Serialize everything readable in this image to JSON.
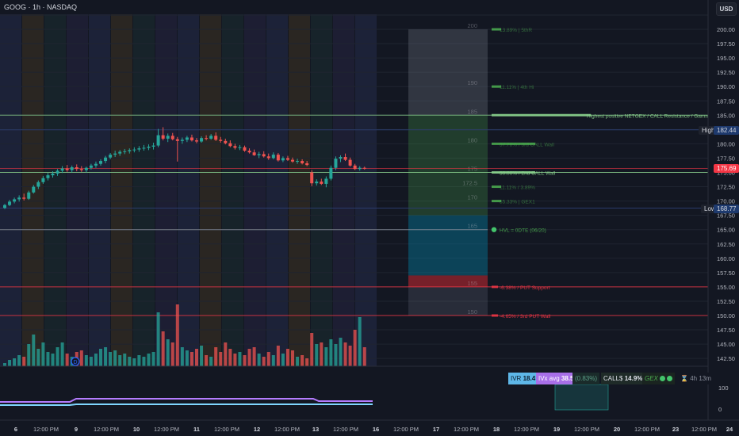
{
  "header": {
    "title": "GOOG · 1h · NASDAQ",
    "currency": "USD"
  },
  "price_badges": {
    "high_label": "High",
    "high_value": "182.44",
    "current_value": "175.69",
    "low_label": "Low",
    "low_value": "168.77"
  },
  "stats": {
    "ivr_label": "IVR",
    "ivr_value": "18.4",
    "ivx_label": "IVx avg",
    "ivx_value": "38.5",
    "change": "(0.83%)",
    "calls_label": "CALL$",
    "calls_value": "14.9%",
    "gex_label": "GEX",
    "timer": "4h 13m"
  },
  "colors": {
    "up": "#26a69a",
    "down": "#ef5350",
    "resistance": "#4caf50",
    "support": "#f23645",
    "hvl": "#2196f3",
    "background": "#131722"
  },
  "chart_data": {
    "type": "candlestick",
    "title": "GOOG · 1h · NASDAQ",
    "y_axis": {
      "min": 140,
      "max": 202.5,
      "step": 2.5,
      "ticks": [
        "200.00",
        "197.50",
        "195.00",
        "192.50",
        "190.00",
        "187.50",
        "185.00",
        "182.50",
        "180.00",
        "177.50",
        "175.00",
        "172.50",
        "170.00",
        "167.50",
        "165.00",
        "162.50",
        "160.00",
        "157.50",
        "155.00",
        "152.50",
        "150.00",
        "147.50",
        "145.00",
        "142.50"
      ]
    },
    "x_axis_labels": [
      "6",
      "12:00 PM",
      "9",
      "12:00 PM",
      "10",
      "12:00 PM",
      "11",
      "12:00 PM",
      "12",
      "12:00 PM",
      "13",
      "12:00 PM",
      "16",
      "12:00 PM",
      "17",
      "12:00 PM",
      "18",
      "12:00 PM",
      "19",
      "12:00 PM",
      "20",
      "12:00 PM",
      "23",
      "12:00 PM",
      "24",
      "12:00 PI"
    ],
    "candles": [
      {
        "o": 168.8,
        "h": 169.5,
        "l": 168.6,
        "c": 169.3
      },
      {
        "o": 169.3,
        "h": 170.2,
        "l": 169.1,
        "c": 169.9
      },
      {
        "o": 169.9,
        "h": 170.6,
        "l": 169.6,
        "c": 170.3
      },
      {
        "o": 170.3,
        "h": 171.0,
        "l": 169.9,
        "c": 170.6
      },
      {
        "o": 170.6,
        "h": 171.3,
        "l": 170.1,
        "c": 170.4
      },
      {
        "o": 170.4,
        "h": 171.8,
        "l": 170.2,
        "c": 171.5
      },
      {
        "o": 171.5,
        "h": 172.8,
        "l": 171.3,
        "c": 172.5
      },
      {
        "o": 172.5,
        "h": 173.6,
        "l": 172.1,
        "c": 173.3
      },
      {
        "o": 173.3,
        "h": 174.4,
        "l": 173.0,
        "c": 174.0
      },
      {
        "o": 174.0,
        "h": 174.9,
        "l": 173.6,
        "c": 174.5
      },
      {
        "o": 174.5,
        "h": 175.2,
        "l": 174.1,
        "c": 174.8
      },
      {
        "o": 174.8,
        "h": 175.6,
        "l": 174.4,
        "c": 175.3
      },
      {
        "o": 175.3,
        "h": 176.1,
        "l": 174.9,
        "c": 175.7
      },
      {
        "o": 175.7,
        "h": 176.3,
        "l": 175.1,
        "c": 175.4
      },
      {
        "o": 175.4,
        "h": 176.2,
        "l": 175.0,
        "c": 175.9
      },
      {
        "o": 175.9,
        "h": 176.4,
        "l": 175.2,
        "c": 175.6
      },
      {
        "o": 175.6,
        "h": 176.1,
        "l": 175.1,
        "c": 175.4
      },
      {
        "o": 175.4,
        "h": 176.0,
        "l": 175.0,
        "c": 175.8
      },
      {
        "o": 175.8,
        "h": 176.5,
        "l": 175.5,
        "c": 176.2
      },
      {
        "o": 176.2,
        "h": 176.9,
        "l": 175.8,
        "c": 176.5
      },
      {
        "o": 176.5,
        "h": 177.3,
        "l": 176.2,
        "c": 177.0
      },
      {
        "o": 177.0,
        "h": 177.9,
        "l": 176.6,
        "c": 177.6
      },
      {
        "o": 177.6,
        "h": 178.4,
        "l": 177.3,
        "c": 178.1
      },
      {
        "o": 178.1,
        "h": 178.8,
        "l": 177.7,
        "c": 178.3
      },
      {
        "o": 178.3,
        "h": 178.9,
        "l": 177.9,
        "c": 178.6
      },
      {
        "o": 178.6,
        "h": 179.1,
        "l": 178.2,
        "c": 178.7
      },
      {
        "o": 178.7,
        "h": 179.2,
        "l": 178.3,
        "c": 178.9
      },
      {
        "o": 178.9,
        "h": 179.4,
        "l": 178.5,
        "c": 179.0
      },
      {
        "o": 179.0,
        "h": 179.6,
        "l": 178.6,
        "c": 179.2
      },
      {
        "o": 179.2,
        "h": 179.8,
        "l": 178.8,
        "c": 179.3
      },
      {
        "o": 179.3,
        "h": 179.9,
        "l": 178.9,
        "c": 179.5
      },
      {
        "o": 179.5,
        "h": 180.2,
        "l": 179.0,
        "c": 179.7
      },
      {
        "o": 179.7,
        "h": 182.6,
        "l": 179.4,
        "c": 181.5
      },
      {
        "o": 181.5,
        "h": 182.9,
        "l": 180.6,
        "c": 180.9
      },
      {
        "o": 180.9,
        "h": 181.8,
        "l": 180.3,
        "c": 181.4
      },
      {
        "o": 181.4,
        "h": 181.9,
        "l": 180.6,
        "c": 180.8
      },
      {
        "o": 180.8,
        "h": 181.2,
        "l": 176.9,
        "c": 180.5
      },
      {
        "o": 180.5,
        "h": 181.1,
        "l": 180.0,
        "c": 180.7
      },
      {
        "o": 180.7,
        "h": 181.4,
        "l": 180.3,
        "c": 181.1
      },
      {
        "o": 181.1,
        "h": 181.6,
        "l": 180.4,
        "c": 180.6
      },
      {
        "o": 180.6,
        "h": 181.0,
        "l": 180.1,
        "c": 180.4
      },
      {
        "o": 180.4,
        "h": 181.3,
        "l": 180.2,
        "c": 181.0
      },
      {
        "o": 181.0,
        "h": 181.5,
        "l": 180.6,
        "c": 180.9
      },
      {
        "o": 180.9,
        "h": 181.7,
        "l": 180.7,
        "c": 181.4
      },
      {
        "o": 181.4,
        "h": 182.0,
        "l": 180.5,
        "c": 180.7
      },
      {
        "o": 180.7,
        "h": 181.2,
        "l": 180.2,
        "c": 180.5
      },
      {
        "o": 180.5,
        "h": 180.9,
        "l": 179.9,
        "c": 180.1
      },
      {
        "o": 180.1,
        "h": 180.6,
        "l": 179.4,
        "c": 179.6
      },
      {
        "o": 179.6,
        "h": 180.0,
        "l": 179.0,
        "c": 179.3
      },
      {
        "o": 179.3,
        "h": 179.8,
        "l": 178.9,
        "c": 179.4
      },
      {
        "o": 179.4,
        "h": 179.7,
        "l": 178.6,
        "c": 178.8
      },
      {
        "o": 178.8,
        "h": 179.2,
        "l": 178.3,
        "c": 178.5
      },
      {
        "o": 178.5,
        "h": 179.0,
        "l": 177.9,
        "c": 178.0
      },
      {
        "o": 178.0,
        "h": 178.6,
        "l": 177.5,
        "c": 178.2
      },
      {
        "o": 178.2,
        "h": 178.7,
        "l": 177.6,
        "c": 177.8
      },
      {
        "o": 177.8,
        "h": 178.3,
        "l": 177.2,
        "c": 177.5
      },
      {
        "o": 177.5,
        "h": 178.5,
        "l": 177.3,
        "c": 178.1
      },
      {
        "o": 178.1,
        "h": 178.4,
        "l": 176.9,
        "c": 177.1
      },
      {
        "o": 177.1,
        "h": 177.8,
        "l": 176.8,
        "c": 177.5
      },
      {
        "o": 177.5,
        "h": 177.9,
        "l": 177.0,
        "c": 177.2
      },
      {
        "o": 177.2,
        "h": 177.6,
        "l": 176.7,
        "c": 176.9
      },
      {
        "o": 176.9,
        "h": 177.4,
        "l": 176.5,
        "c": 177.0
      },
      {
        "o": 177.0,
        "h": 177.3,
        "l": 176.4,
        "c": 176.6
      },
      {
        "o": 176.6,
        "h": 177.0,
        "l": 176.1,
        "c": 176.3
      },
      {
        "o": 175.0,
        "h": 175.4,
        "l": 172.6,
        "c": 173.1
      },
      {
        "o": 173.1,
        "h": 173.8,
        "l": 172.7,
        "c": 173.4
      },
      {
        "o": 173.4,
        "h": 173.9,
        "l": 172.8,
        "c": 173.0
      },
      {
        "o": 173.0,
        "h": 174.3,
        "l": 172.4,
        "c": 173.9
      },
      {
        "o": 173.9,
        "h": 176.2,
        "l": 173.6,
        "c": 175.8
      },
      {
        "o": 175.8,
        "h": 177.8,
        "l": 175.4,
        "c": 177.4
      },
      {
        "o": 177.4,
        "h": 178.0,
        "l": 176.8,
        "c": 177.7
      },
      {
        "o": 177.7,
        "h": 178.3,
        "l": 177.0,
        "c": 177.2
      },
      {
        "o": 177.2,
        "h": 177.6,
        "l": 176.0,
        "c": 176.2
      },
      {
        "o": 176.2,
        "h": 176.5,
        "l": 175.4,
        "c": 175.6
      },
      {
        "o": 175.6,
        "h": 176.1,
        "l": 175.3,
        "c": 175.8
      },
      {
        "o": 175.8,
        "h": 176.0,
        "l": 175.5,
        "c": 175.7
      }
    ],
    "volume_bars": [
      4,
      8,
      10,
      14,
      12,
      28,
      40,
      22,
      30,
      18,
      16,
      24,
      30,
      16,
      12,
      18,
      20,
      14,
      12,
      16,
      22,
      24,
      18,
      20,
      14,
      16,
      12,
      10,
      14,
      12,
      16,
      18,
      68,
      44,
      34,
      30,
      78,
      24,
      20,
      18,
      22,
      26,
      14,
      12,
      24,
      18,
      30,
      22,
      16,
      18,
      14,
      22,
      24,
      16,
      12,
      18,
      14,
      26,
      16,
      22,
      20,
      12,
      14,
      10,
      42,
      28,
      30,
      24,
      34,
      28,
      36,
      30,
      26,
      46,
      62,
      24
    ],
    "levels": [
      {
        "price": 200,
        "kind": "gex",
        "label": "13.89% | 5thR"
      },
      {
        "price": 190,
        "kind": "gex",
        "label": "11.11% | 4th Hi"
      },
      {
        "price": 185,
        "kind": "resistance",
        "label": "Highest positive NETGEX / CALL Resistance / Gamma Wall"
      },
      {
        "price": 180,
        "kind": "gex",
        "label": "57.78% / 3rd CALL Wall"
      },
      {
        "price": 175,
        "kind": "resistance",
        "label": "50.00% / 2nd CALL Wall"
      },
      {
        "price": 172.5,
        "kind": "gex",
        "label": "11.11% / 3.89%"
      },
      {
        "price": 170,
        "kind": "gex",
        "label": "35.33% | GEX1"
      },
      {
        "price": 165,
        "kind": "hvl",
        "label": "HVL = 0DTE (06/20)"
      },
      {
        "price": 155,
        "kind": "support",
        "label": "-6.38% / PUT Support"
      },
      {
        "price": 150,
        "kind": "support",
        "label": "-4.65% / 3rd PUT Wall"
      }
    ],
    "strike_labels": [
      "200",
      "190",
      "185",
      "180",
      "175",
      "172.5",
      "170",
      "165",
      "155",
      "150"
    ],
    "indicator": {
      "ticks": [
        "100",
        "0"
      ]
    }
  }
}
